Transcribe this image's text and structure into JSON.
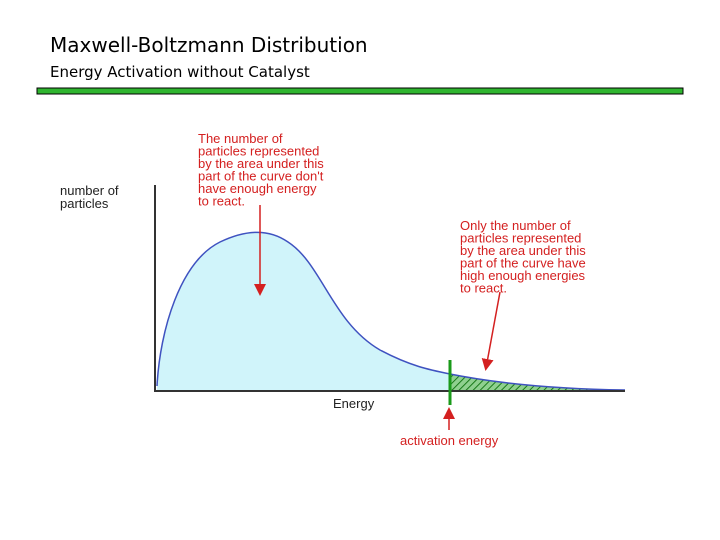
{
  "header": {
    "title": "Maxwell-Boltzmann Distribution",
    "subtitle": "Energy Activation without Catalyst"
  },
  "diagram": {
    "y_axis_label": [
      "number of",
      "particles"
    ],
    "x_axis_label": "Energy",
    "activation_label": "activation energy",
    "annotations": [
      {
        "lines": [
          "The number of",
          "particles represented",
          "by the area under this",
          "part of the curve don't",
          "have enough energy",
          "to react."
        ]
      },
      {
        "lines": [
          "Only the number of",
          "particles represented",
          "by the area under this",
          "part of the curve have",
          "high enough energies",
          "to react."
        ]
      }
    ]
  }
}
